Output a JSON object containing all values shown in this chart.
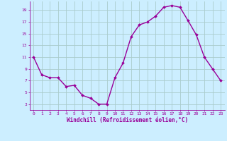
{
  "x": [
    0,
    1,
    2,
    3,
    4,
    5,
    6,
    7,
    8,
    9,
    10,
    11,
    12,
    13,
    14,
    15,
    16,
    17,
    18,
    19,
    20,
    21,
    22,
    23
  ],
  "y": [
    11,
    8,
    7.5,
    7.5,
    6,
    6.2,
    4.5,
    4,
    3,
    3,
    7.5,
    10,
    14.5,
    16.5,
    17,
    18,
    19.5,
    19.8,
    19.5,
    17.2,
    14.8,
    11,
    9,
    7
  ],
  "line_color": "#990099",
  "marker": "D",
  "marker_size": 2.0,
  "bg_color": "#cceeff",
  "grid_color": "#aacccc",
  "xlabel": "Windchill (Refroidissement éolien,°C)",
  "xlabel_color": "#990099",
  "tick_color": "#990099",
  "ylim": [
    2,
    20.5
  ],
  "xlim": [
    -0.5,
    23.5
  ],
  "yticks": [
    3,
    5,
    7,
    9,
    11,
    13,
    15,
    17,
    19
  ],
  "xticks": [
    0,
    1,
    2,
    3,
    4,
    5,
    6,
    7,
    8,
    9,
    10,
    11,
    12,
    13,
    14,
    15,
    16,
    17,
    18,
    19,
    20,
    21,
    22,
    23
  ],
  "line_width": 1.0,
  "fig_width": 3.2,
  "fig_height": 2.0,
  "dpi": 100
}
